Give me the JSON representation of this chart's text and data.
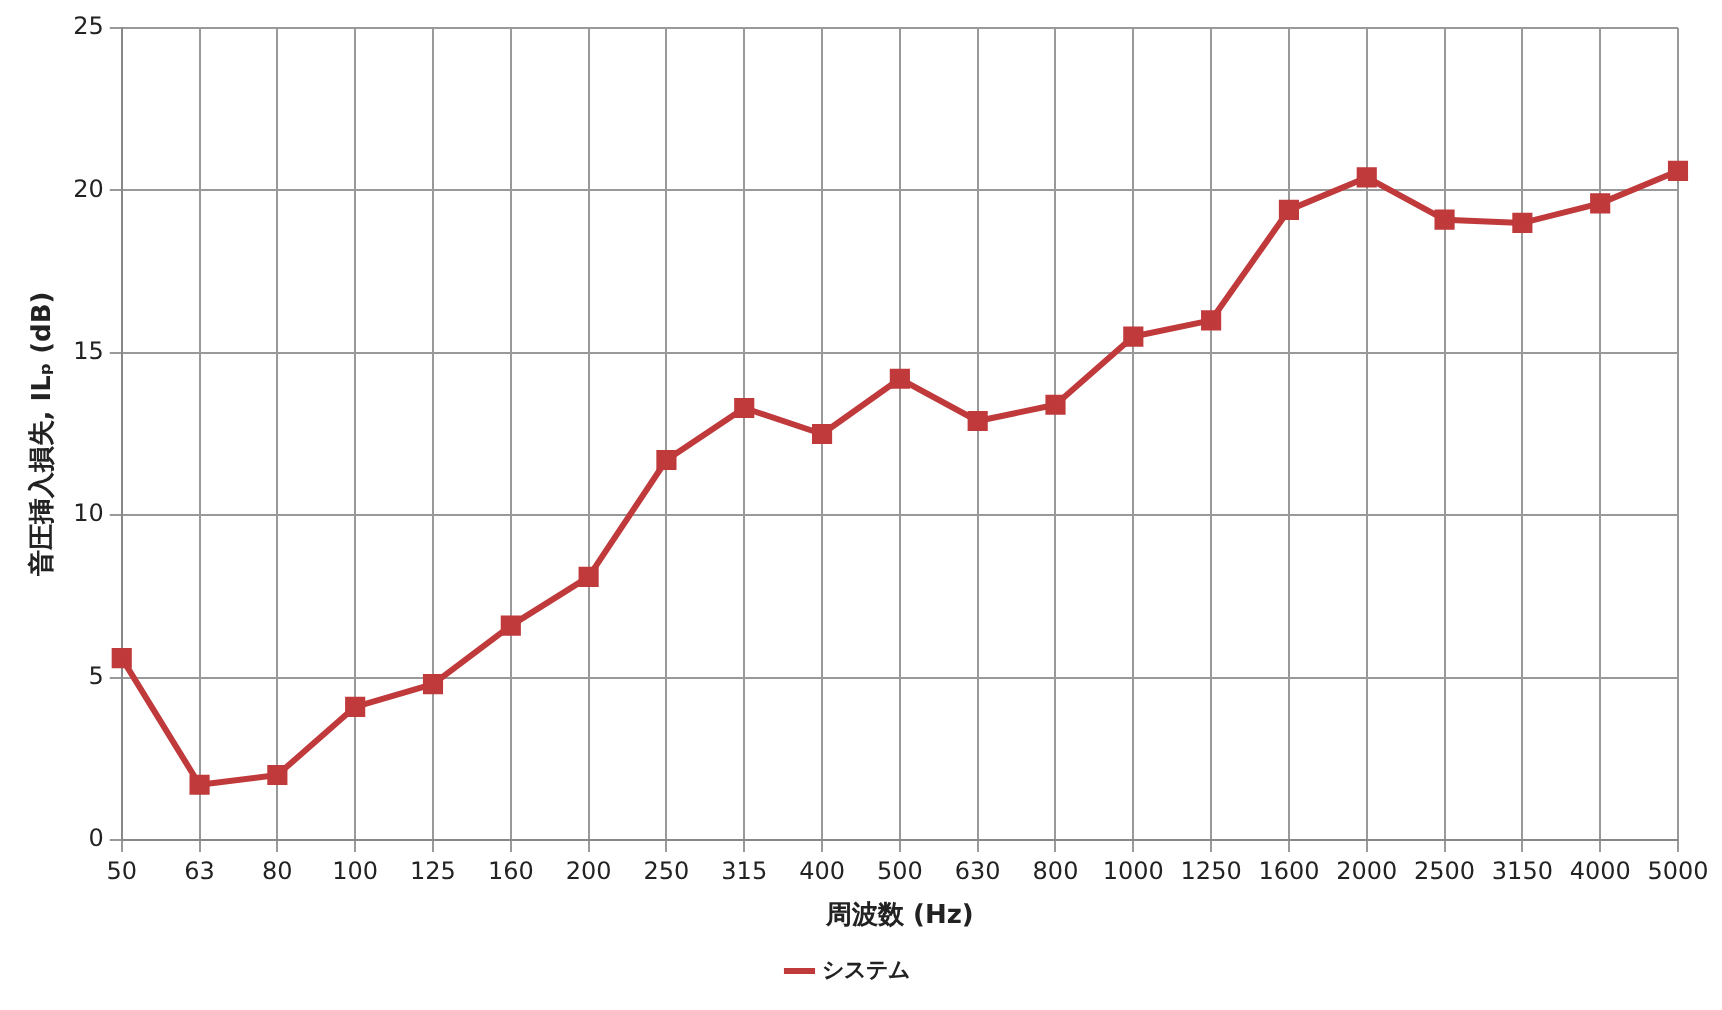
{
  "chart_data": {
    "type": "line",
    "xlabel": "周波数 (Hz)",
    "ylabel": "音圧挿入損失, ILₚ (dB)",
    "categories": [
      "50",
      "63",
      "80",
      "100",
      "125",
      "160",
      "200",
      "250",
      "315",
      "400",
      "500",
      "630",
      "800",
      "1000",
      "1250",
      "1600",
      "2000",
      "2500",
      "3150",
      "4000",
      "5000"
    ],
    "series": [
      {
        "name": "システム",
        "color": "#c0393b",
        "values": [
          5.6,
          1.7,
          2.0,
          4.1,
          4.8,
          6.6,
          8.1,
          11.7,
          13.3,
          12.5,
          14.2,
          12.9,
          13.4,
          15.5,
          16.0,
          19.4,
          20.4,
          19.1,
          19.0,
          19.6,
          20.6
        ]
      }
    ],
    "ylim": [
      0,
      25
    ],
    "yticks": [
      0,
      5,
      10,
      15,
      20,
      25
    ],
    "grid": true,
    "legend": "bottom",
    "marker": "square",
    "line_style": "solid"
  }
}
